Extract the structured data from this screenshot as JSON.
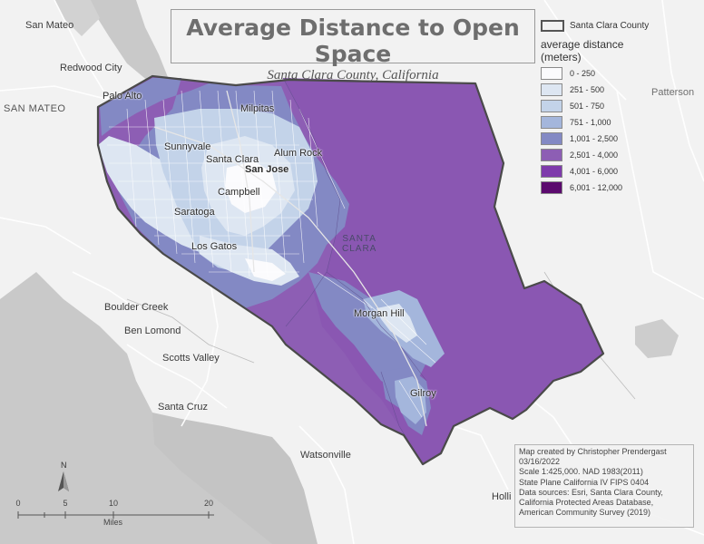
{
  "title": "Average Distance to Open Space",
  "subtitle": "Santa Clara County, California",
  "legend": {
    "boundary_label": "Santa Clara County",
    "title_line1": "average distance",
    "title_line2": "(meters)",
    "classes": [
      {
        "label": "0 - 250",
        "color": "#fbfbfd"
      },
      {
        "label": "251 - 500",
        "color": "#dde6f2"
      },
      {
        "label": "501 - 750",
        "color": "#c3d3e9"
      },
      {
        "label": "751 - 1,000",
        "color": "#a4b6dc"
      },
      {
        "label": "1,001 - 2,500",
        "color": "#8389c4"
      },
      {
        "label": "2,501 - 4,000",
        "color": "#8d5eb4"
      },
      {
        "label": "4,001 - 6,000",
        "color": "#7e3aab"
      },
      {
        "label": "6,001 - 12,000",
        "color": "#5b0a6e"
      }
    ]
  },
  "places": {
    "san_mateo_city": "San Mateo",
    "redwood_city": "Redwood City",
    "san_mateo_county": "SAN MATEO",
    "palo_alto": "Palo Alto",
    "milpitas": "Milpitas",
    "sunnyvale": "Sunnyvale",
    "alum_rock": "Alum Rock",
    "santa_clara_city": "Santa Clara",
    "san_jose": "San Jose",
    "campbell": "Campbell",
    "saratoga": "Saratoga",
    "los_gatos": "Los Gatos",
    "county_label_1": "SANTA",
    "county_label_2": "CLARA",
    "morgan_hill": "Morgan Hill",
    "gilroy": "Gilroy",
    "boulder_creek": "Boulder Creek",
    "ben_lomond": "Ben Lomond",
    "scotts_valley": "Scotts Valley",
    "santa_cruz": "Santa Cruz",
    "watsonville": "Watsonville",
    "patterson": "Patterson",
    "hollister": "Holli"
  },
  "credits": [
    "Map created by Christopher Prendergast",
    "03/16/2022",
    "Scale 1:425,000. NAD 1983(2011)",
    "State Plane California IV FIPS 0404",
    "Data sources: Esri, Santa Clara County,",
    "California Protected Areas Database,",
    "American Community Survey (2019)"
  ],
  "scale_bar": {
    "ticks": [
      "0",
      "5",
      "10",
      "20"
    ],
    "units": "Miles",
    "north": "N"
  }
}
